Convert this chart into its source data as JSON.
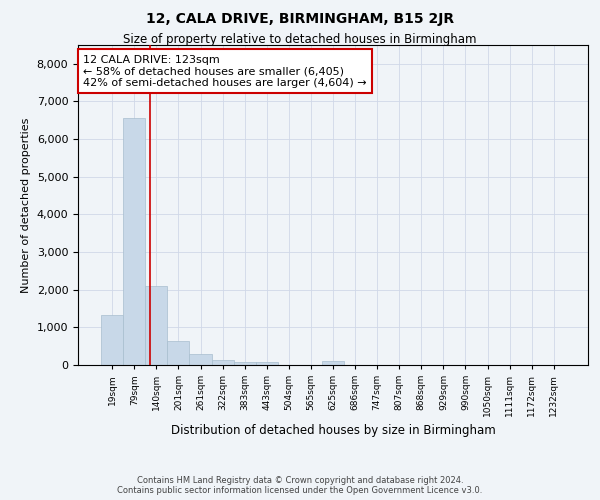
{
  "title": "12, CALA DRIVE, BIRMINGHAM, B15 2JR",
  "subtitle": "Size of property relative to detached houses in Birmingham",
  "xlabel": "Distribution of detached houses by size in Birmingham",
  "ylabel": "Number of detached properties",
  "footer_line1": "Contains HM Land Registry data © Crown copyright and database right 2024.",
  "footer_line2": "Contains public sector information licensed under the Open Government Licence v3.0.",
  "categories": [
    "19sqm",
    "79sqm",
    "140sqm",
    "201sqm",
    "261sqm",
    "322sqm",
    "383sqm",
    "443sqm",
    "504sqm",
    "565sqm",
    "625sqm",
    "686sqm",
    "747sqm",
    "807sqm",
    "868sqm",
    "929sqm",
    "990sqm",
    "1050sqm",
    "1111sqm",
    "1172sqm",
    "1232sqm"
  ],
  "bar_values": [
    1320,
    6570,
    2090,
    650,
    290,
    130,
    90,
    70,
    0,
    0,
    110,
    0,
    0,
    0,
    0,
    0,
    0,
    0,
    0,
    0,
    0
  ],
  "bar_color": "#c8d8e8",
  "bar_edge_color": "#a8bece",
  "grid_color": "#d0d8e8",
  "background_color": "#f0f4f8",
  "vline_color": "#cc0000",
  "annotation_text": "12 CALA DRIVE: 123sqm\n← 58% of detached houses are smaller (6,405)\n42% of semi-detached houses are larger (4,604) →",
  "annotation_box_edge": "#cc0000",
  "ylim": [
    0,
    8500
  ],
  "yticks": [
    0,
    1000,
    2000,
    3000,
    4000,
    5000,
    6000,
    7000,
    8000
  ],
  "property_sqm": 123,
  "bin_starts": [
    19,
    79,
    140,
    201,
    261,
    322,
    383,
    443,
    504,
    565,
    625,
    686,
    747,
    807,
    868,
    929,
    990,
    1050,
    1111,
    1172,
    1232
  ]
}
